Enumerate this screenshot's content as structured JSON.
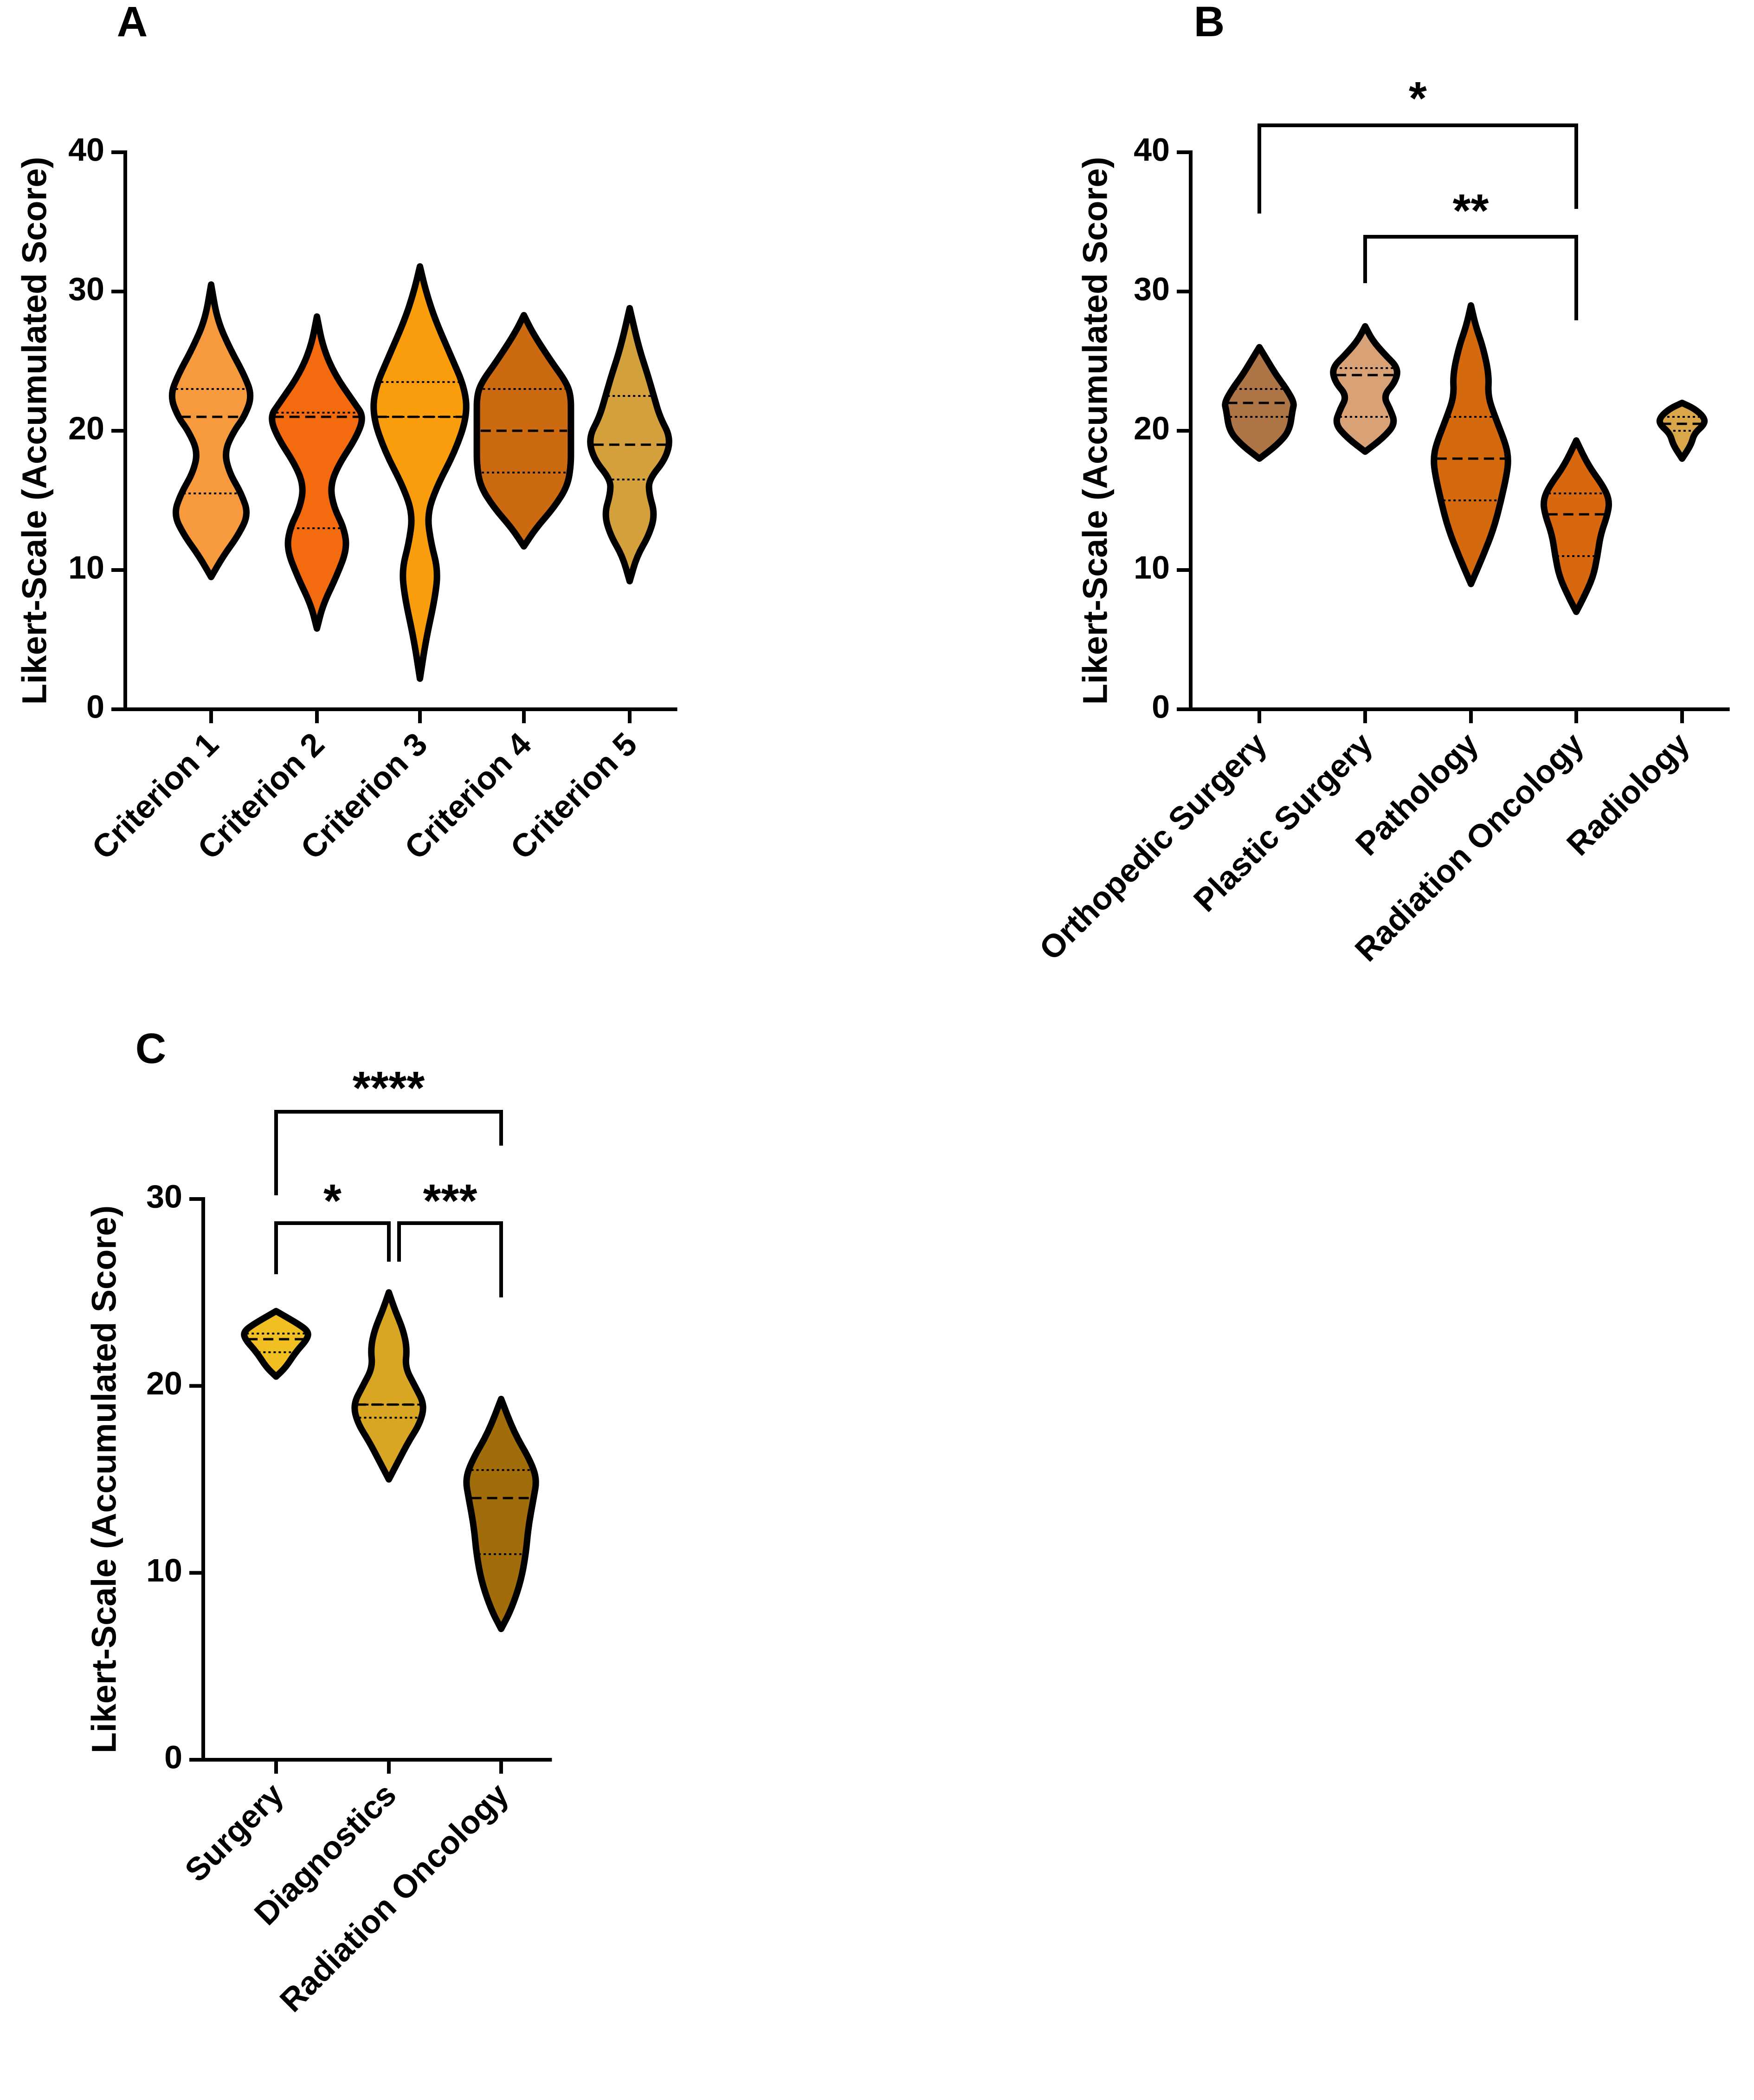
{
  "chart_data": [
    {
      "panel": "A",
      "type": "violin",
      "title": "",
      "ylabel": "Likert-Scale (Accumulated Score)",
      "xlabel": "",
      "ylim": [
        0,
        40
      ],
      "yticks": [
        0,
        10,
        20,
        30,
        40
      ],
      "categories": [
        "Criterion 1",
        "Criterion  2",
        "Criterion  3",
        "Criterion 4",
        "Criterion 5"
      ],
      "series": [
        {
          "name": "Criterion 1",
          "color": "#f79a3e",
          "min": 9.5,
          "max": 30.5,
          "q1": 15.5,
          "median": 21,
          "q3": 23,
          "profile": [
            [
              9.5,
              0
            ],
            [
              11,
              0.2
            ],
            [
              12.5,
              0.45
            ],
            [
              14,
              0.62
            ],
            [
              15.5,
              0.5
            ],
            [
              17,
              0.3
            ],
            [
              18.5,
              0.22
            ],
            [
              20,
              0.38
            ],
            [
              21,
              0.55
            ],
            [
              22.5,
              0.68
            ],
            [
              24,
              0.55
            ],
            [
              26,
              0.3
            ],
            [
              28,
              0.1
            ],
            [
              30.5,
              0
            ]
          ]
        },
        {
          "name": "Criterion  2",
          "color": "#f46a0f",
          "min": 5.8,
          "max": 28.2,
          "q1": 13,
          "median": 21,
          "q3": 21.3,
          "profile": [
            [
              5.8,
              0
            ],
            [
              7.5,
              0.1
            ],
            [
              9.5,
              0.32
            ],
            [
              11.5,
              0.5
            ],
            [
              13,
              0.45
            ],
            [
              14.5,
              0.28
            ],
            [
              16,
              0.22
            ],
            [
              17.5,
              0.35
            ],
            [
              19.5,
              0.65
            ],
            [
              21,
              0.78
            ],
            [
              22,
              0.62
            ],
            [
              24,
              0.3
            ],
            [
              26,
              0.1
            ],
            [
              28.2,
              0
            ]
          ]
        },
        {
          "name": "Criterion  3",
          "color": "#f99d0c",
          "min": 2.2,
          "max": 31.8,
          "q1": 21,
          "median": 21,
          "q3": 23.5,
          "profile": [
            [
              2.2,
              0
            ],
            [
              5,
              0.1
            ],
            [
              8,
              0.25
            ],
            [
              10,
              0.3
            ],
            [
              12,
              0.18
            ],
            [
              14,
              0.12
            ],
            [
              16,
              0.28
            ],
            [
              18.5,
              0.58
            ],
            [
              21,
              0.78
            ],
            [
              23,
              0.75
            ],
            [
              25.5,
              0.5
            ],
            [
              28,
              0.25
            ],
            [
              30,
              0.1
            ],
            [
              31.8,
              0
            ]
          ]
        },
        {
          "name": "Criterion 4",
          "color": "#cc6a12",
          "min": 11.7,
          "max": 28.3,
          "q1": 17,
          "median": 20,
          "q3": 23,
          "profile": [
            [
              11.7,
              0
            ],
            [
              13,
              0.2
            ],
            [
              14.5,
              0.5
            ],
            [
              16,
              0.72
            ],
            [
              17.5,
              0.78
            ],
            [
              19,
              0.78
            ],
            [
              21,
              0.78
            ],
            [
              22.5,
              0.78
            ],
            [
              23.5,
              0.7
            ],
            [
              25,
              0.45
            ],
            [
              27,
              0.15
            ],
            [
              28.3,
              0
            ]
          ]
        },
        {
          "name": "Criterion 5",
          "color": "#d4a03c",
          "min": 9.2,
          "max": 28.8,
          "q1": 16.5,
          "median": 19,
          "q3": 22.5,
          "profile": [
            [
              9.2,
              0
            ],
            [
              11,
              0.12
            ],
            [
              12.5,
              0.32
            ],
            [
              14,
              0.42
            ],
            [
              15.5,
              0.32
            ],
            [
              16.5,
              0.32
            ],
            [
              18,
              0.6
            ],
            [
              19.5,
              0.68
            ],
            [
              21,
              0.5
            ],
            [
              22.5,
              0.4
            ],
            [
              24,
              0.3
            ],
            [
              26,
              0.15
            ],
            [
              28.8,
              0
            ]
          ]
        }
      ]
    },
    {
      "panel": "B",
      "type": "violin",
      "title": "",
      "ylabel": "Likert-Scale (Accumulated Score)",
      "xlabel": "",
      "ylim": [
        0,
        40
      ],
      "yticks": [
        0,
        10,
        20,
        30,
        40
      ],
      "categories": [
        "Orthopedic Surgery",
        "Plastic Surgery",
        "Pathology",
        "Radiation Oncology",
        "Radiology"
      ],
      "series": [
        {
          "name": "Orthopedic Surgery",
          "color": "#ad7446",
          "min": 18,
          "max": 26,
          "q1": 21,
          "median": 22,
          "q3": 23,
          "profile": [
            [
              18,
              0
            ],
            [
              19,
              0.3
            ],
            [
              20,
              0.5
            ],
            [
              21.5,
              0.55
            ],
            [
              22,
              0.58
            ],
            [
              23,
              0.45
            ],
            [
              24,
              0.28
            ],
            [
              25,
              0.14
            ],
            [
              26,
              0
            ]
          ]
        },
        {
          "name": "Plastic Surgery",
          "color": "#d8a276",
          "min": 18.5,
          "max": 27.5,
          "q1": 21,
          "median": 24,
          "q3": 24.5,
          "profile": [
            [
              18.5,
              0
            ],
            [
              19.5,
              0.3
            ],
            [
              20.5,
              0.5
            ],
            [
              21.5,
              0.42
            ],
            [
              22.5,
              0.3
            ],
            [
              23.5,
              0.5
            ],
            [
              24.5,
              0.55
            ],
            [
              25.5,
              0.32
            ],
            [
              26.5,
              0.12
            ],
            [
              27.5,
              0
            ]
          ]
        },
        {
          "name": "Pathology",
          "color": "#d46a0d",
          "min": 9,
          "max": 29,
          "q1": 15,
          "median": 18,
          "q3": 21,
          "profile": [
            [
              9,
              0
            ],
            [
              11,
              0.2
            ],
            [
              13,
              0.38
            ],
            [
              15,
              0.5
            ],
            [
              17,
              0.6
            ],
            [
              18,
              0.62
            ],
            [
              19,
              0.58
            ],
            [
              21,
              0.4
            ],
            [
              22.5,
              0.28
            ],
            [
              24,
              0.3
            ],
            [
              26,
              0.2
            ],
            [
              27.5,
              0.08
            ],
            [
              29,
              0
            ]
          ]
        },
        {
          "name": "Radiation Oncology",
          "color": "#d8680f",
          "min": 7,
          "max": 19.3,
          "q1": 11,
          "median": 14,
          "q3": 15.5,
          "profile": [
            [
              7,
              0
            ],
            [
              8,
              0.12
            ],
            [
              9.5,
              0.28
            ],
            [
              11,
              0.35
            ],
            [
              12.5,
              0.4
            ],
            [
              14,
              0.52
            ],
            [
              15,
              0.55
            ],
            [
              16,
              0.45
            ],
            [
              17.5,
              0.2
            ],
            [
              19.3,
              0
            ]
          ]
        },
        {
          "name": "Radiology",
          "color": "#d9a64a",
          "min": 18,
          "max": 22,
          "q1": 20,
          "median": 20.5,
          "q3": 21,
          "profile": [
            [
              18,
              0
            ],
            [
              19,
              0.15
            ],
            [
              19.8,
              0.2
            ],
            [
              20.5,
              0.38
            ],
            [
              21,
              0.36
            ],
            [
              21.6,
              0.2
            ],
            [
              22,
              0
            ]
          ]
        }
      ],
      "significance": [
        {
          "from": "Orthopedic Surgery",
          "to": "Radiation Oncology",
          "label": "*"
        },
        {
          "from": "Plastic Surgery",
          "to": "Radiation Oncology",
          "label": "**"
        }
      ]
    },
    {
      "panel": "C",
      "type": "violin",
      "title": "",
      "ylabel": "Likert-Scale (Accumulated Score)",
      "xlabel": "",
      "ylim": [
        0,
        30
      ],
      "yticks": [
        0,
        10,
        20,
        30
      ],
      "categories": [
        "Surgery",
        "Diagnostics",
        "Radiation Oncology"
      ],
      "series": [
        {
          "name": "Surgery",
          "color": "#f1bf22",
          "min": 20.5,
          "max": 24,
          "q1": 21.8,
          "median": 22.5,
          "q3": 22.8,
          "profile": [
            [
              20.5,
              0
            ],
            [
              21,
              0.15
            ],
            [
              21.8,
              0.3
            ],
            [
              22.5,
              0.48
            ],
            [
              22.9,
              0.5
            ],
            [
              23.3,
              0.35
            ],
            [
              24,
              0
            ]
          ]
        },
        {
          "name": "Diagnostics",
          "color": "#d9a624",
          "min": 15,
          "max": 25,
          "q1": 18.3,
          "median": 19,
          "q3": 19,
          "profile": [
            [
              15,
              0
            ],
            [
              16,
              0.15
            ],
            [
              17,
              0.3
            ],
            [
              18,
              0.48
            ],
            [
              19,
              0.55
            ],
            [
              20,
              0.4
            ],
            [
              21,
              0.25
            ],
            [
              22,
              0.28
            ],
            [
              23,
              0.22
            ],
            [
              24,
              0.1
            ],
            [
              25,
              0
            ]
          ]
        },
        {
          "name": "Radiation Oncology",
          "color": "#a06d0a",
          "min": 7,
          "max": 19.3,
          "q1": 11,
          "median": 14,
          "q3": 15.5,
          "profile": [
            [
              7,
              0
            ],
            [
              8,
              0.15
            ],
            [
              9.5,
              0.3
            ],
            [
              11,
              0.38
            ],
            [
              12.5,
              0.42
            ],
            [
              14,
              0.5
            ],
            [
              15,
              0.55
            ],
            [
              16,
              0.45
            ],
            [
              17.5,
              0.2
            ],
            [
              19.3,
              0
            ]
          ]
        }
      ],
      "significance": [
        {
          "from": "Surgery",
          "to": "Radiation Oncology",
          "label": "****"
        },
        {
          "from": "Surgery",
          "to": "Diagnostics",
          "label": "*"
        },
        {
          "from": "Diagnostics",
          "to": "Radiation Oncology",
          "label": "***"
        }
      ]
    }
  ]
}
